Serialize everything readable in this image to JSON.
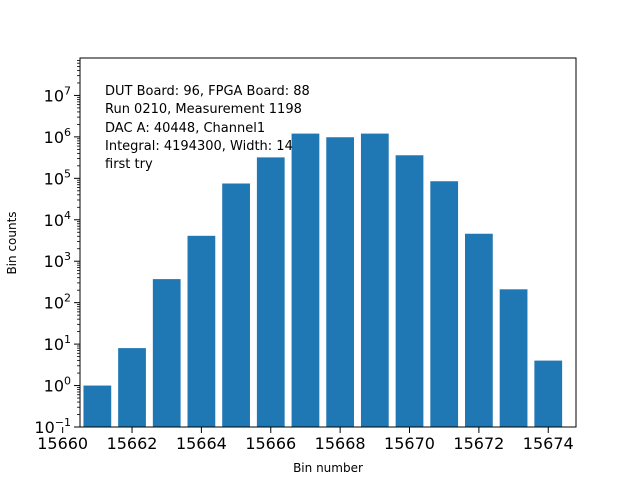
{
  "chart_data": {
    "type": "bar",
    "x": [
      15661,
      15662,
      15663,
      15664,
      15665,
      15666,
      15667,
      15668,
      15669,
      15670,
      15671,
      15672,
      15673,
      15674
    ],
    "values": [
      1,
      8,
      370,
      4100,
      75000,
      320000,
      1200000,
      980000,
      1200000,
      360000,
      85000,
      4600,
      210,
      4
    ],
    "xlabel": "Bin number",
    "ylabel": "Bin counts",
    "xlim": [
      15660.5,
      15674.8
    ],
    "xticks": [
      15660,
      15662,
      15664,
      15666,
      15668,
      15670,
      15672,
      15674
    ],
    "xtick_labels": [
      "15660",
      "15662",
      "15664",
      "15666",
      "15668",
      "15670",
      "15672",
      "15674"
    ],
    "yscale": "log",
    "ylim": [
      0.1,
      80000000
    ],
    "yticks": [
      {
        "base": "10",
        "exp": "−1",
        "value": 0.1
      },
      {
        "base": "10",
        "exp": "0",
        "value": 1
      },
      {
        "base": "10",
        "exp": "1",
        "value": 10
      },
      {
        "base": "10",
        "exp": "2",
        "value": 100
      },
      {
        "base": "10",
        "exp": "3",
        "value": 1000
      },
      {
        "base": "10",
        "exp": "4",
        "value": 10000
      },
      {
        "base": "10",
        "exp": "5",
        "value": 100000
      },
      {
        "base": "10",
        "exp": "6",
        "value": 1000000
      },
      {
        "base": "10",
        "exp": "7",
        "value": 10000000
      }
    ],
    "bar_color": "#1f77b4",
    "grid": false,
    "annotation_lines": [
      "DUT Board: 96, FPGA Board: 88",
      "Run 0210, Measurement 1198",
      "DAC A: 40448, Channel1",
      "Integral: 4194300, Width: 14",
      "first try"
    ]
  }
}
